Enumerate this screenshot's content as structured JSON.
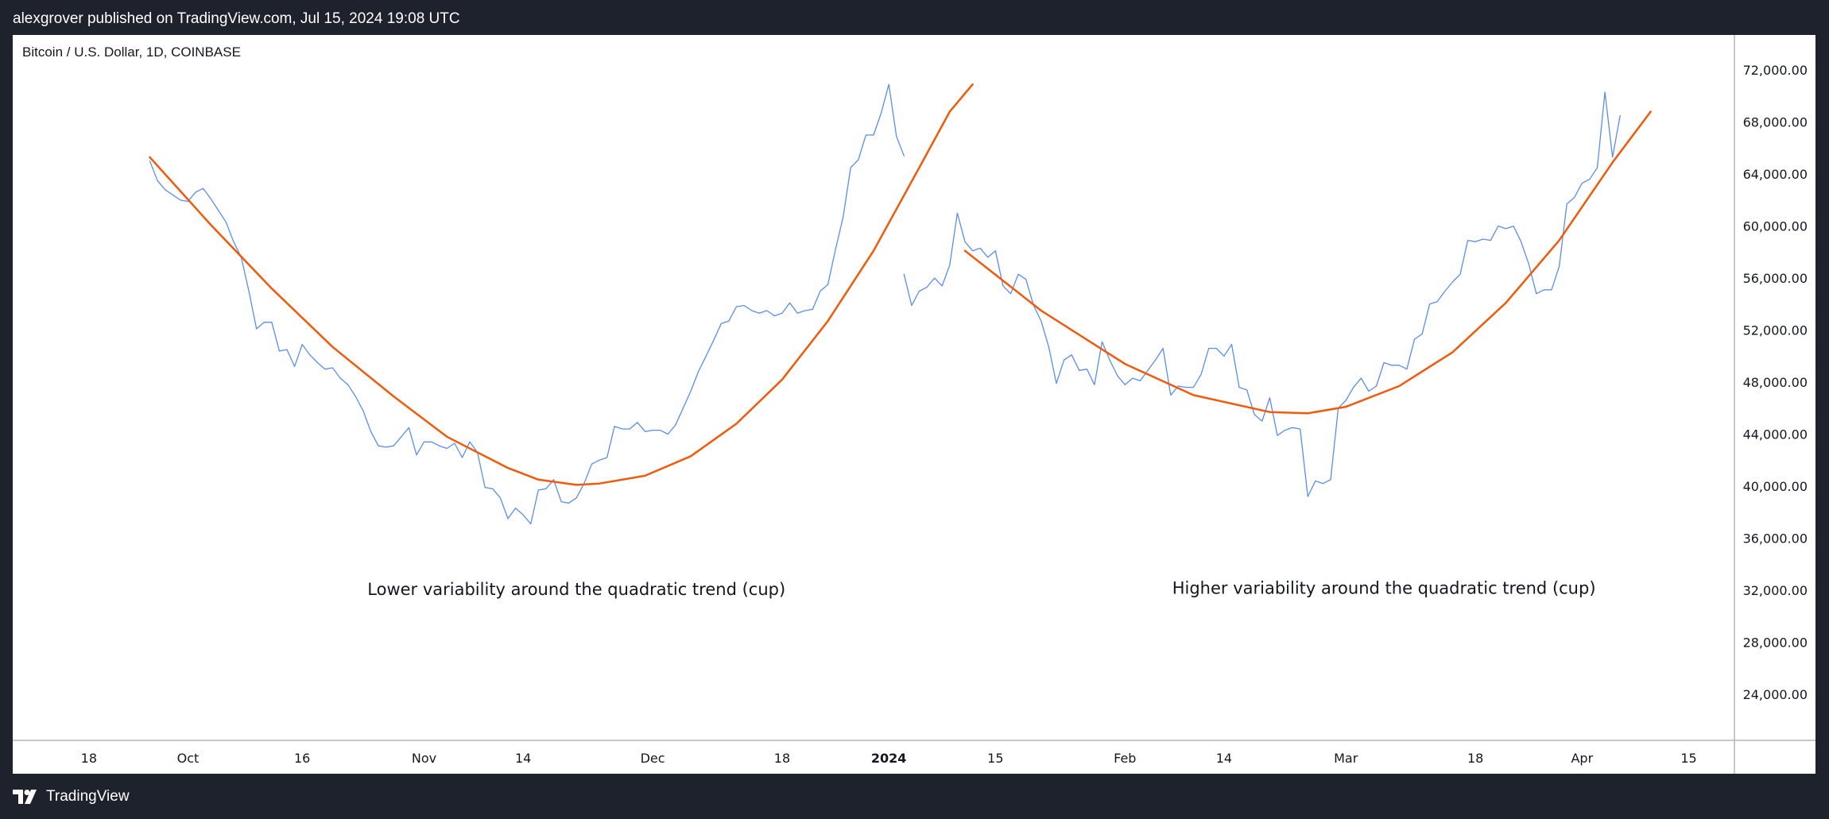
{
  "header": {
    "published_text": "alexgrover published on TradingView.com, Jul 15, 2024 19:08 UTC"
  },
  "symbol": {
    "title": "Bitcoin / U.S. Dollar, 1D, COINBASE"
  },
  "footer": {
    "logo_text": "TradingView",
    "logo_icon": "tradingview-logo-icon"
  },
  "colors": {
    "price_line": "#5b8def",
    "trend_line": "#f05a0a",
    "axis_text": "#131722",
    "axis_line": "#b2b5be",
    "background": "#ffffff",
    "frame": "#1e222d"
  },
  "chart_data": {
    "type": "line",
    "x_axis": {
      "ticks": [
        {
          "label": "18",
          "date": "2023-09-18"
        },
        {
          "label": "Oct",
          "date": "2023-10-01"
        },
        {
          "label": "16",
          "date": "2023-10-16"
        },
        {
          "label": "Nov",
          "date": "2023-11-01"
        },
        {
          "label": "14",
          "date": "2023-11-14"
        },
        {
          "label": "Dec",
          "date": "2023-12-01"
        },
        {
          "label": "18",
          "date": "2023-12-18"
        },
        {
          "label": "2024",
          "date": "2024-01-01",
          "bold": true
        },
        {
          "label": "15",
          "date": "2024-01-15"
        },
        {
          "label": "Feb",
          "date": "2024-02-01"
        },
        {
          "label": "14",
          "date": "2024-02-14"
        },
        {
          "label": "Mar",
          "date": "2024-03-01"
        },
        {
          "label": "18",
          "date": "2024-03-18"
        },
        {
          "label": "Apr",
          "date": "2024-04-01"
        },
        {
          "label": "15",
          "date": "2024-04-15"
        }
      ],
      "range": [
        "2023-09-08",
        "2024-04-21"
      ]
    },
    "y_axis": {
      "ticks": [
        24000,
        28000,
        32000,
        36000,
        40000,
        44000,
        48000,
        52000,
        56000,
        60000,
        64000,
        68000,
        72000
      ],
      "tick_labels": [
        "24,000.00",
        "28,000.00",
        "32,000.00",
        "36,000.00",
        "40,000.00",
        "44,000.00",
        "48,000.00",
        "52,000.00",
        "56,000.00",
        "60,000.00",
        "64,000.00",
        "68,000.00",
        "72,000.00"
      ],
      "range": [
        20450,
        74700
      ],
      "position": "right"
    },
    "series": [
      {
        "key": "segment1_price",
        "style": "price",
        "points": [
          [
            "2023-09-26",
            65000
          ],
          [
            "2023-09-27",
            63500
          ],
          [
            "2023-09-28",
            62800
          ],
          [
            "2023-09-29",
            62400
          ],
          [
            "2023-09-30",
            62000
          ],
          [
            "2023-10-01",
            61900
          ],
          [
            "2023-10-02",
            62600
          ],
          [
            "2023-10-03",
            62900
          ],
          [
            "2023-10-04",
            62100
          ],
          [
            "2023-10-05",
            61200
          ],
          [
            "2023-10-06",
            60300
          ],
          [
            "2023-10-07",
            58800
          ],
          [
            "2023-10-08",
            57600
          ],
          [
            "2023-10-09",
            55000
          ],
          [
            "2023-10-10",
            52100
          ],
          [
            "2023-10-11",
            52600
          ],
          [
            "2023-10-12",
            52600
          ],
          [
            "2023-10-13",
            50400
          ],
          [
            "2023-10-14",
            50500
          ],
          [
            "2023-10-15",
            49200
          ],
          [
            "2023-10-16",
            50900
          ],
          [
            "2023-10-17",
            50100
          ],
          [
            "2023-10-18",
            49500
          ],
          [
            "2023-10-19",
            49000
          ],
          [
            "2023-10-20",
            49100
          ],
          [
            "2023-10-21",
            48300
          ],
          [
            "2023-10-22",
            47800
          ],
          [
            "2023-10-23",
            46900
          ],
          [
            "2023-10-24",
            45800
          ],
          [
            "2023-10-25",
            44200
          ],
          [
            "2023-10-26",
            43100
          ],
          [
            "2023-10-27",
            43000
          ],
          [
            "2023-10-28",
            43100
          ],
          [
            "2023-10-29",
            43800
          ],
          [
            "2023-10-30",
            44500
          ],
          [
            "2023-10-31",
            42400
          ],
          [
            "2023-11-01",
            43400
          ],
          [
            "2023-11-02",
            43400
          ],
          [
            "2023-11-03",
            43100
          ],
          [
            "2023-11-04",
            42900
          ],
          [
            "2023-11-05",
            43300
          ],
          [
            "2023-11-06",
            42200
          ],
          [
            "2023-11-07",
            43400
          ],
          [
            "2023-11-08",
            42600
          ],
          [
            "2023-11-09",
            39900
          ],
          [
            "2023-11-10",
            39800
          ],
          [
            "2023-11-11",
            39100
          ],
          [
            "2023-11-12",
            37500
          ],
          [
            "2023-11-13",
            38300
          ],
          [
            "2023-11-14",
            37800
          ],
          [
            "2023-11-15",
            37100
          ],
          [
            "2023-11-16",
            39700
          ],
          [
            "2023-11-17",
            39800
          ],
          [
            "2023-11-18",
            40500
          ],
          [
            "2023-11-19",
            38800
          ],
          [
            "2023-11-20",
            38700
          ],
          [
            "2023-11-21",
            39100
          ],
          [
            "2023-11-22",
            40200
          ],
          [
            "2023-11-23",
            41700
          ],
          [
            "2023-11-24",
            42000
          ],
          [
            "2023-11-25",
            42200
          ],
          [
            "2023-11-26",
            44600
          ],
          [
            "2023-11-27",
            44400
          ],
          [
            "2023-11-28",
            44400
          ],
          [
            "2023-11-29",
            44900
          ],
          [
            "2023-11-30",
            44200
          ],
          [
            "2023-12-01",
            44300
          ],
          [
            "2023-12-02",
            44300
          ],
          [
            "2023-12-03",
            44000
          ],
          [
            "2023-12-04",
            44700
          ],
          [
            "2023-12-05",
            46000
          ],
          [
            "2023-12-06",
            47300
          ],
          [
            "2023-12-07",
            48800
          ],
          [
            "2023-12-08",
            50000
          ],
          [
            "2023-12-09",
            51200
          ],
          [
            "2023-12-10",
            52500
          ],
          [
            "2023-12-11",
            52700
          ],
          [
            "2023-12-12",
            53800
          ],
          [
            "2023-12-13",
            53900
          ],
          [
            "2023-12-14",
            53500
          ],
          [
            "2023-12-15",
            53300
          ],
          [
            "2023-12-16",
            53500
          ],
          [
            "2023-12-17",
            53100
          ],
          [
            "2023-12-18",
            53300
          ],
          [
            "2023-12-19",
            54100
          ],
          [
            "2023-12-20",
            53300
          ],
          [
            "2023-12-21",
            53500
          ],
          [
            "2023-12-22",
            53600
          ],
          [
            "2023-12-23",
            55000
          ],
          [
            "2023-12-24",
            55500
          ],
          [
            "2023-12-25",
            58200
          ],
          [
            "2023-12-26",
            60700
          ],
          [
            "2023-12-27",
            64500
          ],
          [
            "2023-12-28",
            65100
          ],
          [
            "2023-12-29",
            67000
          ],
          [
            "2023-12-30",
            67000
          ],
          [
            "2023-12-31",
            68700
          ],
          [
            "2024-01-01",
            70900
          ],
          [
            "2024-01-02",
            66900
          ],
          [
            "2024-01-03",
            65400
          ]
        ]
      },
      {
        "key": "segment1_trend",
        "style": "trend",
        "points": [
          [
            "2023-09-26",
            65300
          ],
          [
            "2023-10-04",
            60100
          ],
          [
            "2023-10-12",
            55200
          ],
          [
            "2023-10-20",
            50700
          ],
          [
            "2023-10-28",
            46900
          ],
          [
            "2023-11-04",
            43800
          ],
          [
            "2023-11-12",
            41400
          ],
          [
            "2023-11-16",
            40500
          ],
          [
            "2023-11-21",
            40100
          ],
          [
            "2023-11-24",
            40200
          ],
          [
            "2023-11-30",
            40800
          ],
          [
            "2023-12-06",
            42300
          ],
          [
            "2023-12-12",
            44800
          ],
          [
            "2023-12-18",
            48200
          ],
          [
            "2023-12-24",
            52700
          ],
          [
            "2023-12-30",
            58100
          ],
          [
            "2024-01-05",
            64500
          ],
          [
            "2024-01-09",
            68800
          ],
          [
            "2024-01-12",
            70900
          ]
        ],
        "note_dates_shifted": true
      },
      {
        "key": "segment2_price",
        "style": "price",
        "points": [
          [
            "2024-01-03",
            56300
          ],
          [
            "2024-01-04",
            53900
          ],
          [
            "2024-01-05",
            55000
          ],
          [
            "2024-01-06",
            55300
          ],
          [
            "2024-01-07",
            56000
          ],
          [
            "2024-01-08",
            55400
          ],
          [
            "2024-01-09",
            57000
          ],
          [
            "2024-01-10",
            61000
          ],
          [
            "2024-01-11",
            58800
          ],
          [
            "2024-01-12",
            58100
          ],
          [
            "2024-01-13",
            58300
          ],
          [
            "2024-01-14",
            57600
          ],
          [
            "2024-01-15",
            58100
          ],
          [
            "2024-01-16",
            55400
          ],
          [
            "2024-01-17",
            54800
          ],
          [
            "2024-01-18",
            56300
          ],
          [
            "2024-01-19",
            55900
          ],
          [
            "2024-01-20",
            53900
          ],
          [
            "2024-01-21",
            52700
          ],
          [
            "2024-01-22",
            50700
          ],
          [
            "2024-01-23",
            47900
          ],
          [
            "2024-01-24",
            49700
          ],
          [
            "2024-01-25",
            50100
          ],
          [
            "2024-01-26",
            48900
          ],
          [
            "2024-01-27",
            49000
          ],
          [
            "2024-01-28",
            47800
          ],
          [
            "2024-01-29",
            51100
          ],
          [
            "2024-01-30",
            49700
          ],
          [
            "2024-01-31",
            48500
          ],
          [
            "2024-02-01",
            47800
          ],
          [
            "2024-02-02",
            48300
          ],
          [
            "2024-02-03",
            48100
          ],
          [
            "2024-02-04",
            48900
          ],
          [
            "2024-02-05",
            49700
          ],
          [
            "2024-02-06",
            50600
          ],
          [
            "2024-02-07",
            47000
          ],
          [
            "2024-02-08",
            47700
          ],
          [
            "2024-02-09",
            47600
          ],
          [
            "2024-02-10",
            47600
          ],
          [
            "2024-02-11",
            48600
          ],
          [
            "2024-02-12",
            50600
          ],
          [
            "2024-02-13",
            50600
          ],
          [
            "2024-02-14",
            50000
          ],
          [
            "2024-02-15",
            50900
          ],
          [
            "2024-02-16",
            47600
          ],
          [
            "2024-02-17",
            47400
          ],
          [
            "2024-02-18",
            45500
          ],
          [
            "2024-02-19",
            45000
          ],
          [
            "2024-02-20",
            46800
          ],
          [
            "2024-02-21",
            43900
          ],
          [
            "2024-02-22",
            44300
          ],
          [
            "2024-02-23",
            44500
          ],
          [
            "2024-02-24",
            44400
          ],
          [
            "2024-02-25",
            39200
          ],
          [
            "2024-02-26",
            40400
          ],
          [
            "2024-02-27",
            40200
          ],
          [
            "2024-02-28",
            40500
          ],
          [
            "2024-02-29",
            46000
          ],
          [
            "2024-03-01",
            46600
          ],
          [
            "2024-03-02",
            47600
          ],
          [
            "2024-03-03",
            48300
          ],
          [
            "2024-03-04",
            47300
          ],
          [
            "2024-03-05",
            47700
          ],
          [
            "2024-03-06",
            49500
          ],
          [
            "2024-03-07",
            49300
          ],
          [
            "2024-03-08",
            49300
          ],
          [
            "2024-03-09",
            49000
          ],
          [
            "2024-03-10",
            51300
          ],
          [
            "2024-03-11",
            51700
          ],
          [
            "2024-03-12",
            54000
          ],
          [
            "2024-03-13",
            54200
          ],
          [
            "2024-03-14",
            55000
          ],
          [
            "2024-03-15",
            55700
          ],
          [
            "2024-03-16",
            56300
          ],
          [
            "2024-03-17",
            58900
          ],
          [
            "2024-03-18",
            58800
          ],
          [
            "2024-03-19",
            59000
          ],
          [
            "2024-03-20",
            58900
          ],
          [
            "2024-03-21",
            60000
          ],
          [
            "2024-03-22",
            59800
          ],
          [
            "2024-03-23",
            60000
          ],
          [
            "2024-03-24",
            58800
          ],
          [
            "2024-03-25",
            57100
          ],
          [
            "2024-03-26",
            54800
          ],
          [
            "2024-03-27",
            55100
          ],
          [
            "2024-03-28",
            55100
          ],
          [
            "2024-03-29",
            56900
          ],
          [
            "2024-03-30",
            61700
          ],
          [
            "2024-03-31",
            62200
          ],
          [
            "2024-04-01",
            63300
          ],
          [
            "2024-04-02",
            63600
          ],
          [
            "2024-04-03",
            64500
          ],
          [
            "2024-04-04",
            70300
          ],
          [
            "2024-04-05",
            65300
          ],
          [
            "2024-04-06",
            68500
          ]
        ],
        "note_dates_shifted": true
      },
      {
        "key": "segment2_trend",
        "style": "trend",
        "points": [
          [
            "2024-01-11",
            58100
          ],
          [
            "2024-01-21",
            53500
          ],
          [
            "2024-02-01",
            49400
          ],
          [
            "2024-02-10",
            47000
          ],
          [
            "2024-02-20",
            45700
          ],
          [
            "2024-02-25",
            45600
          ],
          [
            "2024-03-01",
            46100
          ],
          [
            "2024-03-08",
            47700
          ],
          [
            "2024-03-15",
            50300
          ],
          [
            "2024-03-22",
            54100
          ],
          [
            "2024-03-29",
            58900
          ],
          [
            "2024-04-05",
            64900
          ],
          [
            "2024-04-10",
            68800
          ]
        ],
        "note_dates_shifted": true
      }
    ],
    "annotations": [
      {
        "text": "Lower variability around the quadratic trend (cup)",
        "date": "2023-11-21",
        "y": 32000
      },
      {
        "text": "Higher variability around the quadratic trend (cup)",
        "date": "2024-03-06",
        "y": 32100
      }
    ]
  }
}
